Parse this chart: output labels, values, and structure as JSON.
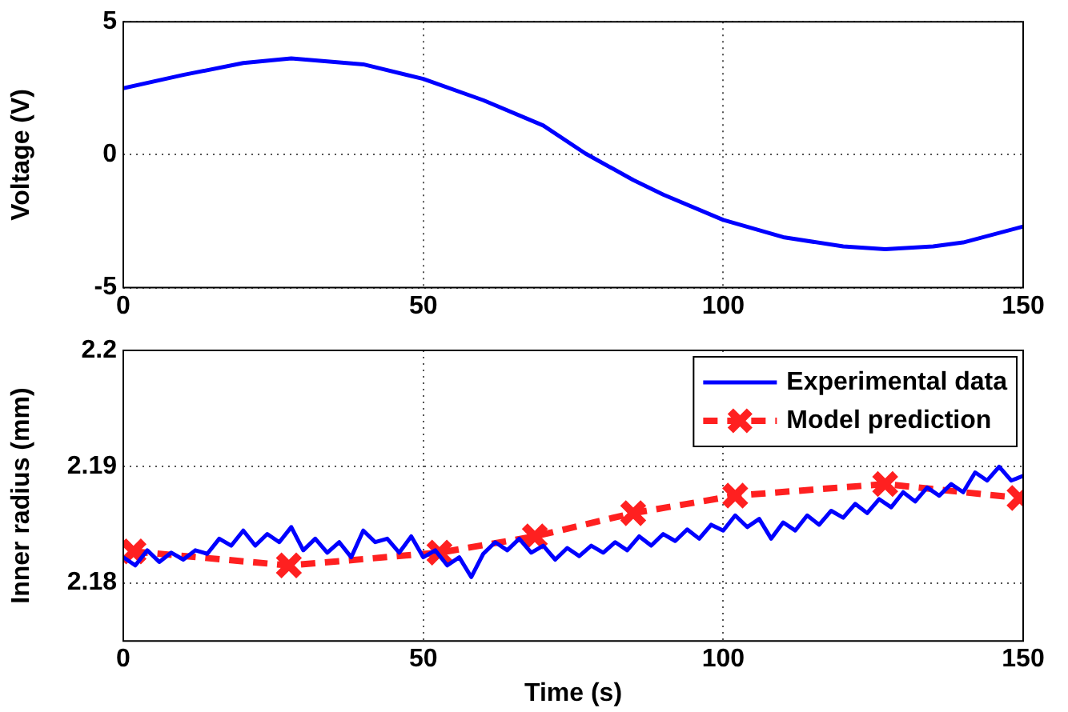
{
  "chart_data": [
    {
      "type": "line",
      "ylabel": "Voltage (V)",
      "xlim": [
        0,
        150
      ],
      "xticks": [
        0,
        50,
        100,
        150
      ],
      "ylim": [
        -5,
        5
      ],
      "yticks": [
        -5,
        0,
        5
      ],
      "grid": true,
      "marker": "none",
      "series": [
        {
          "color": "#0000ff",
          "x": [
            0,
            10,
            20,
            28,
            40,
            50,
            60,
            70,
            77,
            85,
            90,
            100,
            110,
            120,
            127,
            135,
            140,
            150
          ],
          "values": [
            2.5,
            3.0,
            3.45,
            3.62,
            3.4,
            2.85,
            2.05,
            1.1,
            0.05,
            -0.95,
            -1.5,
            -2.45,
            -3.1,
            -3.45,
            -3.55,
            -3.45,
            -3.3,
            -2.7
          ]
        }
      ]
    },
    {
      "type": "line",
      "xlabel": "Time (s)",
      "ylabel": "Inner radius (mm)",
      "xlim": [
        0,
        150
      ],
      "xticks": [
        0,
        50,
        100,
        150
      ],
      "ylim": [
        2.175,
        2.2
      ],
      "yticks": [
        2.18,
        2.19,
        2.2
      ],
      "grid": true,
      "legend": "top right",
      "series": [
        {
          "name": "Experimental data",
          "color": "#0000ff",
          "marker": "none",
          "line_style": "solid",
          "x": [
            0,
            2,
            4,
            6,
            8,
            10,
            12,
            14,
            16,
            18,
            20,
            22,
            24,
            26,
            28,
            30,
            32,
            34,
            36,
            38,
            40,
            42,
            44,
            46,
            48,
            50,
            52,
            54,
            56,
            58,
            60,
            62,
            64,
            66,
            68,
            70,
            72,
            74,
            76,
            78,
            80,
            82,
            84,
            86,
            88,
            90,
            92,
            94,
            96,
            98,
            100,
            102,
            104,
            106,
            108,
            110,
            112,
            114,
            116,
            118,
            120,
            122,
            124,
            126,
            128,
            130,
            132,
            134,
            136,
            138,
            140,
            142,
            144,
            146,
            148,
            150
          ],
          "values": [
            2.1822,
            2.1815,
            2.1828,
            2.1818,
            2.1826,
            2.182,
            2.1828,
            2.1825,
            2.1838,
            2.1832,
            2.1845,
            2.1832,
            2.1842,
            2.1835,
            2.1848,
            2.1828,
            2.1838,
            2.1826,
            2.1835,
            2.1822,
            2.1845,
            2.1835,
            2.1838,
            2.1826,
            2.184,
            2.1822,
            2.1828,
            2.1815,
            2.1822,
            2.1805,
            2.1825,
            2.1835,
            2.1828,
            2.1838,
            2.1826,
            2.1832,
            2.182,
            2.183,
            2.1823,
            2.1832,
            2.1826,
            2.1835,
            2.1828,
            2.184,
            2.1832,
            2.1842,
            2.1836,
            2.1846,
            2.1838,
            2.185,
            2.1845,
            2.1858,
            2.1848,
            2.1855,
            2.1838,
            2.1852,
            2.1845,
            2.1858,
            2.185,
            2.1862,
            2.1856,
            2.1868,
            2.186,
            2.1872,
            2.1865,
            2.1878,
            2.187,
            2.1882,
            2.1875,
            2.1885,
            2.1878,
            2.1895,
            2.1888,
            2.19,
            2.1888,
            2.1892
          ]
        },
        {
          "name": "Model prediction",
          "color": "#ff2020",
          "marker": "cross",
          "line_style": "dashed",
          "x": [
            1.7,
            27.6,
            52.7,
            68.6,
            85,
            102,
            127,
            149.4
          ],
          "values": [
            2.1827,
            2.1815,
            2.1826,
            2.184,
            2.186,
            2.1875,
            2.1885,
            2.1873
          ]
        }
      ]
    }
  ]
}
